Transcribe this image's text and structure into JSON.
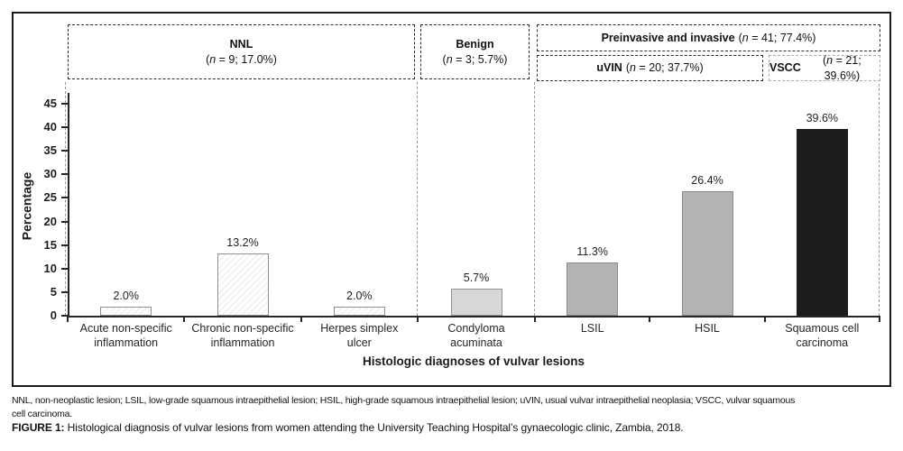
{
  "chart_data": {
    "type": "bar",
    "xlabel": "Histologic diagnoses of vulvar lesions",
    "ylabel": "Percentage",
    "ylim": [
      0,
      45
    ],
    "yticks": [
      0,
      5,
      10,
      15,
      20,
      25,
      30,
      35,
      40,
      45
    ],
    "grid": false,
    "categories": [
      "Acute non-specific\ninflammation",
      "Chronic non-specific\ninflammation",
      "Herpes simplex\nulcer",
      "Condyloma\nacuminata",
      "LSIL",
      "HSIL",
      "Squamous cell\ncarcinoma"
    ],
    "values": [
      2.0,
      13.2,
      2.0,
      5.7,
      11.3,
      26.4,
      39.6
    ],
    "value_labels": [
      "2.0%",
      "13.2%",
      "2.0%",
      "5.7%",
      "11.3%",
      "26.4%",
      "39.6%"
    ],
    "bar_styles": [
      "hatch",
      "hatch",
      "hatch",
      "light",
      "mid",
      "mid",
      "dark"
    ],
    "groups": [
      {
        "name": "NNL",
        "n": 9,
        "percent": "17.0%",
        "categories": [
          "Acute non-specific inflammation",
          "Chronic non-specific inflammation",
          "Herpes simplex ulcer"
        ]
      },
      {
        "name": "Benign",
        "n": 3,
        "percent": "5.7%",
        "categories": [
          "Condyloma acuminata"
        ]
      },
      {
        "name": "Preinvasive and invasive",
        "n": 41,
        "percent": "77.4%",
        "categories": [
          "LSIL",
          "HSIL",
          "Squamous cell carcinoma"
        ]
      },
      {
        "name": "uVIN",
        "n": 20,
        "percent": "37.7%",
        "categories": [
          "LSIL",
          "HSIL"
        ]
      },
      {
        "name": "VSCC",
        "n": 21,
        "percent": "39.6%",
        "categories": [
          "Squamous cell carcinoma"
        ]
      }
    ]
  },
  "group_headers": [
    {
      "name": "NNL",
      "stat_open": "(",
      "stat_n": "n",
      "stat_rest": " = 9; 17.0%)"
    },
    {
      "name": "Benign",
      "stat_open": "(",
      "stat_n": "n",
      "stat_rest": " = 3; 5.7%)"
    },
    {
      "name": "Preinvasive and invasive",
      "stat_open": "(",
      "stat_n": "n",
      "stat_rest": " = 41; 77.4%)"
    },
    {
      "name": "uVIN",
      "stat_open": "(",
      "stat_n": "n",
      "stat_rest": " = 20; 37.7%)"
    },
    {
      "name": "VSCC",
      "stat_open": "(",
      "stat_n": "n",
      "stat_rest": " = 21; 39.6%)"
    }
  ],
  "colors": {
    "bar_light": "#d7d7d7",
    "bar_mid": "#b3b3b3",
    "bar_dark": "#1c1c1c",
    "axis": "#262626",
    "separator": "#9a9a9a"
  },
  "footnote": {
    "line1": "NNL, non-neoplastic lesion; LSIL, low-grade squamous intraepithelial lesion; HSIL, high-grade squamous intraepithelial lesion; uVIN, usual vulvar intraepithelial neoplasia; VSCC, vulvar squamous",
    "line2": "cell carcinoma."
  },
  "caption": {
    "label": "FIGURE 1:",
    "text": " Histological diagnosis of vulvar lesions from women attending the University Teaching Hospital’s gynaecologic clinic, Zambia, 2018."
  }
}
